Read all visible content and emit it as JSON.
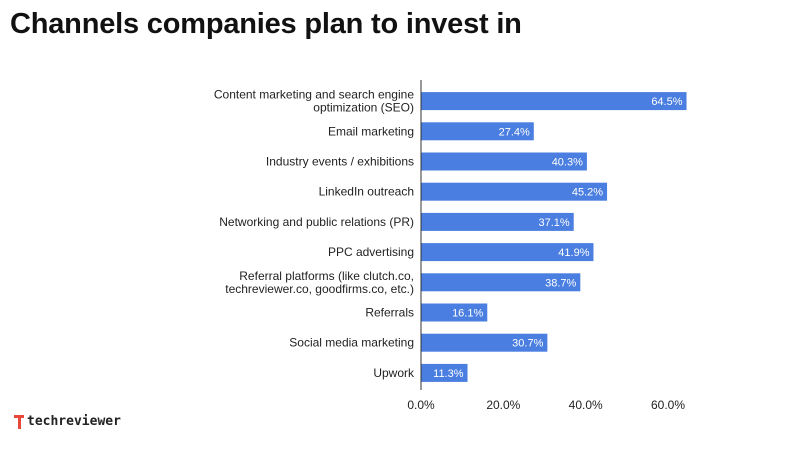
{
  "header": {
    "title": "Channels companies plan to invest in"
  },
  "brand": {
    "name": "techreviewer"
  },
  "colors": {
    "bar": "#4a7ee0",
    "axis": "#333333",
    "grid": "#dddddd"
  },
  "chart_data": {
    "type": "bar",
    "orientation": "horizontal",
    "title": "Channels companies plan to invest in",
    "xlabel": "",
    "ylabel": "",
    "xlim": [
      0,
      0.65
    ],
    "x_ticks": [
      0,
      0.2,
      0.4,
      0.6
    ],
    "x_tick_labels": [
      "0.0%",
      "20.0%",
      "40.0%",
      "60.0%"
    ],
    "grid": false,
    "categories": [
      [
        "Content marketing and search engine",
        "optimization (SEO)"
      ],
      [
        "Email marketing"
      ],
      [
        "Industry events / exhibitions"
      ],
      [
        "LinkedIn outreach"
      ],
      [
        "Networking and public relations (PR)"
      ],
      [
        "PPC advertising"
      ],
      [
        "Referral platforms (like clutch.co,",
        "techreviewer.co, goodfirms.co, etc.)"
      ],
      [
        "Referrals"
      ],
      [
        "Social media marketing"
      ],
      [
        "Upwork"
      ]
    ],
    "values": [
      0.645,
      0.274,
      0.403,
      0.452,
      0.371,
      0.419,
      0.387,
      0.161,
      0.307,
      0.113
    ],
    "value_labels": [
      "64.5%",
      "27.4%",
      "40.3%",
      "45.2%",
      "37.1%",
      "41.9%",
      "38.7%",
      "16.1%",
      "30.7%",
      "11.3%"
    ]
  }
}
